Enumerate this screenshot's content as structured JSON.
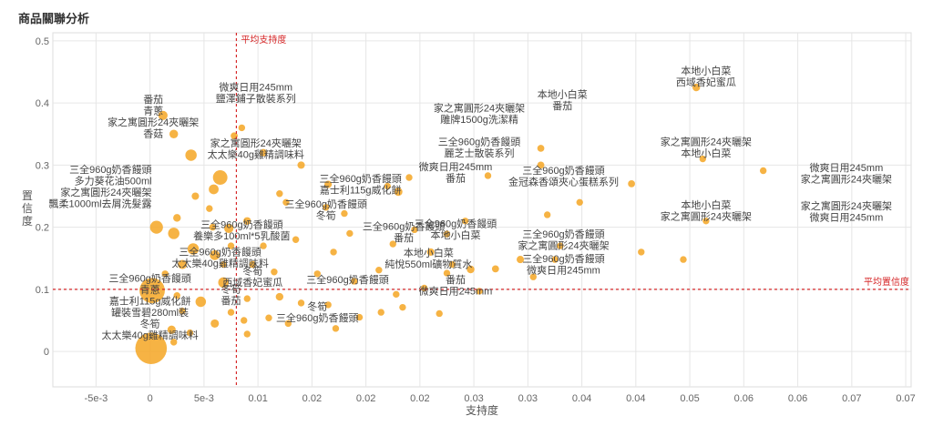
{
  "page": {
    "title": "商品關聯分析"
  },
  "chart_data": {
    "type": "scatter",
    "xlabel": "支持度",
    "ylabel": "置信度",
    "xlim": [
      -0.009,
      0.0705
    ],
    "ylim": [
      -0.057,
      0.513
    ],
    "x_ticks": [
      {
        "v": -0.005,
        "label": "-5e-3"
      },
      {
        "v": 0,
        "label": "0"
      },
      {
        "v": 0.005,
        "label": "5e-3"
      },
      {
        "v": 0.01,
        "label": "0.01"
      },
      {
        "v": 0.015,
        "label": "0.02"
      },
      {
        "v": 0.02,
        "label": "0.02"
      },
      {
        "v": 0.025,
        "label": "0.02"
      },
      {
        "v": 0.03,
        "label": "0.03"
      },
      {
        "v": 0.035,
        "label": "0.03"
      },
      {
        "v": 0.04,
        "label": "0.04"
      },
      {
        "v": 0.045,
        "label": "0.04"
      },
      {
        "v": 0.05,
        "label": "0.05"
      },
      {
        "v": 0.055,
        "label": "0.06"
      },
      {
        "v": 0.06,
        "label": "0.06"
      },
      {
        "v": 0.065,
        "label": "0.07"
      },
      {
        "v": 0.07,
        "label": "0.07"
      }
    ],
    "y_ticks": [
      0,
      0.1,
      0.2,
      0.3,
      0.4,
      0.5
    ],
    "grid": true,
    "colors": {
      "point": "#f5a623",
      "reference": "#d62728",
      "grid": "#e6e6e6"
    },
    "reference_lines": {
      "avg_support": {
        "value": 0.008,
        "label": "平均支持度"
      },
      "avg_confidence": {
        "value": 0.1,
        "label": "平均置信度"
      }
    },
    "points": [
      {
        "x": 0.0001,
        "y": 0.005,
        "s": 9
      },
      {
        "x": 0.0002,
        "y": 0.098,
        "s": 7
      },
      {
        "x": 0.0006,
        "y": 0.2,
        "s": 3
      },
      {
        "x": 0.0022,
        "y": 0.19,
        "s": 2.5
      },
      {
        "x": 0.004,
        "y": 0.165,
        "s": 2.5
      },
      {
        "x": 0.0038,
        "y": 0.316,
        "s": 2.5
      },
      {
        "x": 0.0065,
        "y": 0.28,
        "s": 3.5
      },
      {
        "x": 0.0047,
        "y": 0.08,
        "s": 2.2
      },
      {
        "x": 0.0012,
        "y": 0.38,
        "s": 1.8
      },
      {
        "x": 0.0022,
        "y": 0.35,
        "s": 1.6
      },
      {
        "x": 0.0059,
        "y": 0.261,
        "s": 2
      },
      {
        "x": 0.0068,
        "y": 0.111,
        "s": 2.2
      },
      {
        "x": 0.006,
        "y": 0.155,
        "s": 2
      },
      {
        "x": 0.003,
        "y": 0.14,
        "s": 1.8
      },
      {
        "x": 0.002,
        "y": 0.035,
        "s": 1.5
      },
      {
        "x": 0.006,
        "y": 0.045,
        "s": 1.5
      },
      {
        "x": 0.0073,
        "y": 0.198,
        "s": 1.8
      },
      {
        "x": 0.0025,
        "y": 0.215,
        "s": 1.3
      },
      {
        "x": 0.009,
        "y": 0.21,
        "s": 1.3
      },
      {
        "x": 0.0042,
        "y": 0.25,
        "s": 1.2
      },
      {
        "x": 0.012,
        "y": 0.088,
        "s": 1.3
      },
      {
        "x": 0.0095,
        "y": 0.14,
        "s": 1.1
      },
      {
        "x": 0.0105,
        "y": 0.32,
        "s": 1.2
      },
      {
        "x": 0.0078,
        "y": 0.347,
        "s": 1.1
      },
      {
        "x": 0.0085,
        "y": 0.36,
        "s": 1
      },
      {
        "x": 0.012,
        "y": 0.254,
        "s": 1
      },
      {
        "x": 0.014,
        "y": 0.3,
        "s": 1.2
      },
      {
        "x": 0.0165,
        "y": 0.269,
        "s": 1.2
      },
      {
        "x": 0.0163,
        "y": 0.232,
        "s": 1
      },
      {
        "x": 0.018,
        "y": 0.222,
        "s": 1
      },
      {
        "x": 0.022,
        "y": 0.266,
        "s": 1
      },
      {
        "x": 0.023,
        "y": 0.257,
        "s": 1.5
      },
      {
        "x": 0.024,
        "y": 0.28,
        "s": 1
      },
      {
        "x": 0.0245,
        "y": 0.196,
        "s": 1
      },
      {
        "x": 0.0225,
        "y": 0.173,
        "s": 1
      },
      {
        "x": 0.0275,
        "y": 0.189,
        "s": 1
      },
      {
        "x": 0.026,
        "y": 0.16,
        "s": 1.2
      },
      {
        "x": 0.0275,
        "y": 0.126,
        "s": 1
      },
      {
        "x": 0.0297,
        "y": 0.132,
        "s": 1.3
      },
      {
        "x": 0.032,
        "y": 0.133,
        "s": 1.1
      },
      {
        "x": 0.0343,
        "y": 0.148,
        "s": 1.2
      },
      {
        "x": 0.0355,
        "y": 0.12,
        "s": 1
      },
      {
        "x": 0.0362,
        "y": 0.3,
        "s": 1.1
      },
      {
        "x": 0.0362,
        "y": 0.327,
        "s": 1.1
      },
      {
        "x": 0.0368,
        "y": 0.22,
        "s": 1
      },
      {
        "x": 0.0375,
        "y": 0.148,
        "s": 1
      },
      {
        "x": 0.038,
        "y": 0.17,
        "s": 1
      },
      {
        "x": 0.0398,
        "y": 0.24,
        "s": 1
      },
      {
        "x": 0.0446,
        "y": 0.27,
        "s": 1.1
      },
      {
        "x": 0.0455,
        "y": 0.16,
        "s": 1
      },
      {
        "x": 0.0494,
        "y": 0.148,
        "s": 1
      },
      {
        "x": 0.0506,
        "y": 0.425,
        "s": 1.3
      },
      {
        "x": 0.0512,
        "y": 0.31,
        "s": 1
      },
      {
        "x": 0.0515,
        "y": 0.21,
        "s": 1
      },
      {
        "x": 0.0568,
        "y": 0.291,
        "s": 1
      },
      {
        "x": 0.0313,
        "y": 0.283,
        "s": 1
      },
      {
        "x": 0.0292,
        "y": 0.21,
        "s": 1
      },
      {
        "x": 0.028,
        "y": 0.14,
        "s": 1
      },
      {
        "x": 0.0305,
        "y": 0.097,
        "s": 1
      },
      {
        "x": 0.0189,
        "y": 0.113,
        "s": 1
      },
      {
        "x": 0.0212,
        "y": 0.131,
        "s": 1
      },
      {
        "x": 0.0155,
        "y": 0.125,
        "s": 1
      },
      {
        "x": 0.0135,
        "y": 0.18,
        "s": 1
      },
      {
        "x": 0.017,
        "y": 0.16,
        "s": 1
      },
      {
        "x": 0.0105,
        "y": 0.17,
        "s": 1
      },
      {
        "x": 0.0115,
        "y": 0.128,
        "s": 1
      },
      {
        "x": 0.009,
        "y": 0.085,
        "s": 1
      },
      {
        "x": 0.011,
        "y": 0.054,
        "s": 1
      },
      {
        "x": 0.0128,
        "y": 0.045,
        "s": 1
      },
      {
        "x": 0.0165,
        "y": 0.075,
        "s": 1
      },
      {
        "x": 0.0172,
        "y": 0.037,
        "s": 1
      },
      {
        "x": 0.0194,
        "y": 0.055,
        "s": 1
      },
      {
        "x": 0.0214,
        "y": 0.063,
        "s": 1
      },
      {
        "x": 0.0228,
        "y": 0.092,
        "s": 1
      },
      {
        "x": 0.0234,
        "y": 0.071,
        "s": 1
      },
      {
        "x": 0.0254,
        "y": 0.102,
        "s": 1
      },
      {
        "x": 0.0268,
        "y": 0.061,
        "s": 1
      },
      {
        "x": 0.009,
        "y": 0.028,
        "s": 1
      },
      {
        "x": 0.0075,
        "y": 0.063,
        "s": 1
      },
      {
        "x": 0.003,
        "y": 0.065,
        "s": 1
      },
      {
        "x": 0.0025,
        "y": 0.09,
        "s": 1
      },
      {
        "x": 0.0014,
        "y": 0.125,
        "s": 1
      },
      {
        "x": 0.0058,
        "y": 0.2,
        "s": 1
      },
      {
        "x": 0.0055,
        "y": 0.23,
        "s": 1
      },
      {
        "x": 0.0068,
        "y": 0.14,
        "s": 1
      },
      {
        "x": 0.0075,
        "y": 0.17,
        "s": 1
      },
      {
        "x": 0.0087,
        "y": 0.05,
        "s": 1
      },
      {
        "x": 0.0022,
        "y": 0.015,
        "s": 1
      },
      {
        "x": 0.0037,
        "y": 0.03,
        "s": 1
      },
      {
        "x": 0.014,
        "y": 0.078,
        "s": 1
      },
      {
        "x": 0.0126,
        "y": 0.24,
        "s": 1
      },
      {
        "x": 0.0185,
        "y": 0.19,
        "s": 1
      }
    ],
    "annotations": [
      {
        "x": 0.0003,
        "y": 0.4,
        "lines": [
          "番茄",
          "青蔥",
          "家之寓圓形24夾曬架",
          "香菇"
        ],
        "anchor": "middle"
      },
      {
        "x": 0.0098,
        "y": 0.42,
        "lines": [
          "微爽日用245mm",
          "鹽澤鋪子散裝系列"
        ],
        "anchor": "middle"
      },
      {
        "x": 0.0098,
        "y": 0.33,
        "lines": [
          "家之寓圓形24夾曬架",
          "太太樂40g雞精調味料"
        ],
        "anchor": "middle"
      },
      {
        "x": 0.0005,
        "y": 0.287,
        "lines": [
          "三全960g奶香饅頭",
          "多力葵花油500ml",
          "家之寓圓形24夾曬架",
          "飄柔1000ml去屑洗髮露"
        ],
        "anchor": "end"
      },
      {
        "x": 0.0195,
        "y": 0.273,
        "lines": [
          "三全960g奶香饅頭",
          "嘉士利115g威化餅"
        ],
        "anchor": "middle"
      },
      {
        "x": 0.0163,
        "y": 0.232,
        "lines": [
          "三全960g奶香饅頭",
          "冬筍"
        ],
        "anchor": "middle"
      },
      {
        "x": 0.0085,
        "y": 0.199,
        "lines": [
          "三全960g奶香饅頭",
          "養樂多100ml*5乳酸菌"
        ],
        "anchor": "middle"
      },
      {
        "x": 0.0235,
        "y": 0.196,
        "lines": [
          "三全960g奶香饅頭",
          "番茄"
        ],
        "anchor": "middle"
      },
      {
        "x": 0.0065,
        "y": 0.155,
        "lines": [
          "三全960g奶香饅頭",
          "太太樂40g雞精調味料"
        ],
        "anchor": "middle"
      },
      {
        "x": 0.0258,
        "y": 0.153,
        "lines": [
          "本地小白菜",
          "純悅550ml礦物質水"
        ],
        "anchor": "middle"
      },
      {
        "x": 0.0305,
        "y": 0.386,
        "lines": [
          "家之寓圓形24夾曬架",
          "雕牌1500g洗潔精"
        ],
        "anchor": "middle"
      },
      {
        "x": 0.0305,
        "y": 0.332,
        "lines": [
          "三全960g奶香饅頭",
          "麗芝士散裝系列"
        ],
        "anchor": "middle"
      },
      {
        "x": 0.0283,
        "y": 0.292,
        "lines": [
          "微爽日用245mm",
          "番茄"
        ],
        "anchor": "middle"
      },
      {
        "x": 0.0283,
        "y": 0.2,
        "lines": [
          "三全960g奶香饅頭",
          "本地小白菜"
        ],
        "anchor": "middle"
      },
      {
        "x": 0.0283,
        "y": 0.11,
        "lines": [
          "番茄",
          "微爽日用245mm"
        ],
        "anchor": "middle"
      },
      {
        "x": 0.0383,
        "y": 0.286,
        "lines": [
          "三全960g奶香饅頭",
          "金冠森香頌夾心蛋糕系列"
        ],
        "anchor": "middle"
      },
      {
        "x": 0.0383,
        "y": 0.183,
        "lines": [
          "三全960g奶香饅頭",
          "家之寓圓形24夾曬架"
        ],
        "anchor": "middle"
      },
      {
        "x": 0.0383,
        "y": 0.144,
        "lines": [
          "三全960g奶香饅頭",
          "微爽日用245mm"
        ],
        "anchor": "middle"
      },
      {
        "x": 0.0382,
        "y": 0.408,
        "lines": [
          "本地小白菜",
          "番茄"
        ],
        "anchor": "middle"
      },
      {
        "x": 0.0515,
        "y": 0.446,
        "lines": [
          "本地小白菜",
          "西域香妃蜜瓜"
        ],
        "anchor": "middle"
      },
      {
        "x": 0.0515,
        "y": 0.332,
        "lines": [
          "家之寓圓形24夾曬架",
          "本地小白菜"
        ],
        "anchor": "middle"
      },
      {
        "x": 0.0515,
        "y": 0.23,
        "lines": [
          "本地小白菜",
          "家之寓圓形24夾曬架"
        ],
        "anchor": "middle"
      },
      {
        "x": 0.0645,
        "y": 0.29,
        "lines": [
          "微爽日用245mm",
          "家之寓圓形24夾曬架"
        ],
        "anchor": "middle"
      },
      {
        "x": 0.0645,
        "y": 0.229,
        "lines": [
          "家之寓圓形24夾曬架",
          "微爽日用245mm"
        ],
        "anchor": "middle"
      },
      {
        "x": 0.0183,
        "y": 0.11,
        "lines": [
          "三全960g奶香饅頭"
        ],
        "anchor": "middle"
      },
      {
        "x": 0.0,
        "y": 0.112,
        "lines": [
          "三全960g奶香饅頭",
          "青蔥",
          "嘉士利115g威化餅",
          "罐裝雪碧280ml裝",
          "冬筍",
          "太太樂40g雞精調味料"
        ],
        "anchor": "middle"
      },
      {
        "x": 0.0095,
        "y": 0.124,
        "lines": [
          "冬筍",
          "西域香妃蜜瓜"
        ],
        "anchor": "middle"
      },
      {
        "x": 0.0075,
        "y": 0.095,
        "lines": [
          "冬筍",
          "番茄"
        ],
        "anchor": "middle"
      },
      {
        "x": 0.0155,
        "y": 0.067,
        "lines": [
          "冬筍",
          "三全960g奶香饅頭"
        ],
        "anchor": "middle"
      }
    ]
  }
}
